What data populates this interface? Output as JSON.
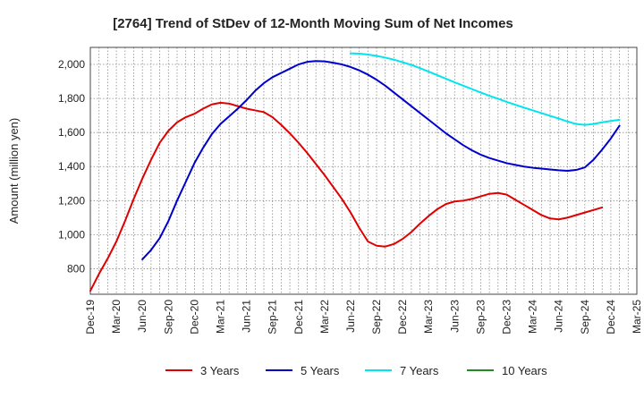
{
  "chart_data": {
    "type": "line",
    "title": "[2764]  Trend of StDev of 12-Month Moving Sum of Net Incomes",
    "xlabel": "",
    "ylabel": "Amount (million yen)",
    "ylim": [
      650,
      2100
    ],
    "yticks": [
      800,
      1000,
      1200,
      1400,
      1600,
      1800,
      2000
    ],
    "ytick_labels": [
      "800",
      "1,000",
      "1,200",
      "1,400",
      "1,600",
      "1,800",
      "2,000"
    ],
    "xticks": [
      "Dec-19",
      "Mar-20",
      "Jun-20",
      "Sep-20",
      "Dec-20",
      "Mar-21",
      "Jun-21",
      "Sep-21",
      "Dec-21",
      "Mar-22",
      "Jun-22",
      "Sep-22",
      "Dec-22",
      "Mar-23",
      "Jun-23",
      "Sep-23",
      "Dec-23",
      "Mar-24",
      "Jun-24",
      "Sep-24",
      "Dec-24",
      "Mar-25"
    ],
    "grid": true,
    "legend_position": "bottom",
    "series": [
      {
        "name": "3 Years",
        "color": "#e00000",
        "points": [
          [
            0,
            670
          ],
          [
            1,
            770
          ],
          [
            2,
            860
          ],
          [
            3,
            960
          ],
          [
            4,
            1080
          ],
          [
            5,
            1210
          ],
          [
            6,
            1330
          ],
          [
            7,
            1440
          ],
          [
            8,
            1540
          ],
          [
            9,
            1610
          ],
          [
            10,
            1660
          ],
          [
            11,
            1690
          ],
          [
            12,
            1710
          ],
          [
            13,
            1740
          ],
          [
            14,
            1765
          ],
          [
            15,
            1775
          ],
          [
            16,
            1770
          ],
          [
            17,
            1755
          ],
          [
            18,
            1740
          ],
          [
            19,
            1730
          ],
          [
            20,
            1720
          ],
          [
            21,
            1690
          ],
          [
            22,
            1645
          ],
          [
            23,
            1595
          ],
          [
            24,
            1540
          ],
          [
            25,
            1480
          ],
          [
            26,
            1415
          ],
          [
            27,
            1350
          ],
          [
            28,
            1280
          ],
          [
            29,
            1210
          ],
          [
            30,
            1130
          ],
          [
            31,
            1040
          ],
          [
            32,
            960
          ],
          [
            33,
            935
          ],
          [
            34,
            930
          ],
          [
            35,
            945
          ],
          [
            36,
            975
          ],
          [
            37,
            1015
          ],
          [
            38,
            1065
          ],
          [
            39,
            1110
          ],
          [
            40,
            1150
          ],
          [
            41,
            1180
          ],
          [
            42,
            1195
          ],
          [
            43,
            1200
          ],
          [
            44,
            1210
          ],
          [
            45,
            1225
          ],
          [
            46,
            1240
          ],
          [
            47,
            1245
          ],
          [
            48,
            1235
          ],
          [
            49,
            1205
          ],
          [
            50,
            1175
          ],
          [
            51,
            1145
          ],
          [
            52,
            1115
          ],
          [
            53,
            1095
          ],
          [
            54,
            1090
          ],
          [
            55,
            1100
          ],
          [
            56,
            1115
          ],
          [
            57,
            1130
          ],
          [
            58,
            1145
          ],
          [
            59,
            1160
          ]
        ]
      },
      {
        "name": "5 Years",
        "color": "#0000cc",
        "points": [
          [
            6,
            855
          ],
          [
            7,
            910
          ],
          [
            8,
            980
          ],
          [
            9,
            1080
          ],
          [
            10,
            1200
          ],
          [
            11,
            1310
          ],
          [
            12,
            1420
          ],
          [
            13,
            1510
          ],
          [
            14,
            1590
          ],
          [
            15,
            1650
          ],
          [
            16,
            1695
          ],
          [
            17,
            1740
          ],
          [
            18,
            1790
          ],
          [
            19,
            1845
          ],
          [
            20,
            1890
          ],
          [
            21,
            1925
          ],
          [
            22,
            1950
          ],
          [
            23,
            1975
          ],
          [
            24,
            2000
          ],
          [
            25,
            2015
          ],
          [
            26,
            2020
          ],
          [
            27,
            2018
          ],
          [
            28,
            2010
          ],
          [
            29,
            2000
          ],
          [
            30,
            1985
          ],
          [
            31,
            1965
          ],
          [
            32,
            1940
          ],
          [
            33,
            1910
          ],
          [
            34,
            1875
          ],
          [
            35,
            1835
          ],
          [
            36,
            1795
          ],
          [
            37,
            1755
          ],
          [
            38,
            1715
          ],
          [
            39,
            1675
          ],
          [
            40,
            1635
          ],
          [
            41,
            1595
          ],
          [
            42,
            1560
          ],
          [
            43,
            1525
          ],
          [
            44,
            1495
          ],
          [
            45,
            1470
          ],
          [
            46,
            1450
          ],
          [
            47,
            1435
          ],
          [
            48,
            1420
          ],
          [
            49,
            1410
          ],
          [
            50,
            1400
          ],
          [
            51,
            1393
          ],
          [
            52,
            1388
          ],
          [
            53,
            1383
          ],
          [
            54,
            1378
          ],
          [
            55,
            1375
          ],
          [
            56,
            1380
          ],
          [
            57,
            1395
          ],
          [
            58,
            1440
          ],
          [
            59,
            1500
          ],
          [
            60,
            1565
          ],
          [
            61,
            1640
          ]
        ]
      },
      {
        "name": "7 Years",
        "color": "#00e5ee",
        "points": [
          [
            30,
            2065
          ],
          [
            31,
            2063
          ],
          [
            32,
            2058
          ],
          [
            33,
            2050
          ],
          [
            34,
            2040
          ],
          [
            35,
            2028
          ],
          [
            36,
            2013
          ],
          [
            37,
            1997
          ],
          [
            38,
            1978
          ],
          [
            39,
            1958
          ],
          [
            40,
            1937
          ],
          [
            41,
            1916
          ],
          [
            42,
            1895
          ],
          [
            43,
            1875
          ],
          [
            44,
            1855
          ],
          [
            45,
            1835
          ],
          [
            46,
            1816
          ],
          [
            47,
            1798
          ],
          [
            48,
            1780
          ],
          [
            49,
            1763
          ],
          [
            50,
            1746
          ],
          [
            51,
            1730
          ],
          [
            52,
            1714
          ],
          [
            53,
            1698
          ],
          [
            54,
            1682
          ],
          [
            55,
            1665
          ],
          [
            56,
            1650
          ],
          [
            57,
            1645
          ],
          [
            58,
            1650
          ],
          [
            59,
            1660
          ],
          [
            60,
            1668
          ],
          [
            61,
            1675
          ]
        ]
      },
      {
        "name": "10 Years",
        "color": "#228b22",
        "points": []
      }
    ]
  }
}
